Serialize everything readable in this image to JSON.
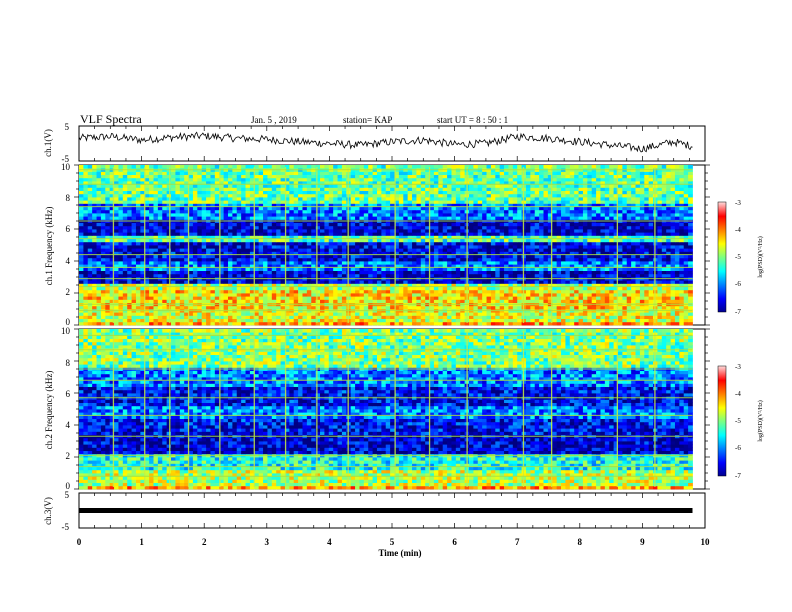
{
  "header": {
    "title": "VLF Spectra",
    "date": "Jan. 5 , 2019",
    "station": "station= KAP",
    "start": "start UT = 8 : 50 : 1"
  },
  "chart_data": [
    {
      "type": "line",
      "ylabel": "ch.1(V)",
      "ylim": [
        -5,
        5
      ],
      "yticks": [
        "5",
        "-5"
      ],
      "xlim": [
        0,
        10
      ],
      "series": [
        {
          "x": [
            0.0,
            0.5,
            1.0,
            1.5,
            2.0,
            2.5,
            3.0,
            3.5,
            4.0,
            4.5,
            5.0,
            5.5,
            6.0,
            6.5,
            7.0,
            7.5,
            8.0,
            8.5,
            9.0,
            9.5,
            9.8
          ],
          "values": [
            1.5,
            2.0,
            1.0,
            1.8,
            2.2,
            1.5,
            1.2,
            0.5,
            0.0,
            -0.5,
            0.5,
            1.0,
            -0.3,
            0.0,
            2.0,
            1.5,
            0.5,
            -0.5,
            -1.5,
            0.5,
            -0.8
          ]
        }
      ]
    },
    {
      "type": "heatmap",
      "ylabel": "ch.1 Frequency (kHz)",
      "ylim": [
        0,
        10
      ],
      "yticks": [
        "0",
        "2",
        "4",
        "6",
        "8",
        "10"
      ],
      "xlim": [
        0,
        10
      ],
      "colorbar": {
        "label": "log(PSD)(V²/Hz)",
        "range": [
          -7,
          -3
        ],
        "ticks": [
          "-3",
          "-4",
          "-5",
          "-6",
          "-7"
        ]
      },
      "bands": [
        {
          "f0": 0.0,
          "f1": 0.3,
          "level": -4.2
        },
        {
          "f0": 0.3,
          "f1": 1.0,
          "level": -4.6
        },
        {
          "f0": 1.0,
          "f1": 2.2,
          "level": -4.4
        },
        {
          "f0": 2.2,
          "f1": 2.6,
          "level": -4.8
        },
        {
          "f0": 2.6,
          "f1": 3.4,
          "level": -6.7
        },
        {
          "f0": 3.4,
          "f1": 4.0,
          "level": -6.0
        },
        {
          "f0": 4.0,
          "f1": 5.2,
          "level": -6.6
        },
        {
          "f0": 5.2,
          "f1": 5.6,
          "level": -5.2
        },
        {
          "f0": 5.6,
          "f1": 6.6,
          "level": -6.7
        },
        {
          "f0": 6.6,
          "f1": 7.6,
          "level": -6.0
        },
        {
          "f0": 7.6,
          "f1": 10.0,
          "level": -5.1
        }
      ],
      "lines_khz": [
        0.9,
        1.3,
        2.4,
        2.9,
        3.6,
        4.4,
        5.4,
        6.5,
        7.4,
        8.8,
        9.7
      ],
      "spikes_min": [
        0.55,
        1.05,
        1.45,
        1.75,
        2.25,
        2.8,
        3.3,
        3.8,
        4.3,
        5.05,
        5.6,
        6.2,
        7.1,
        7.55,
        8.6,
        9.2
      ]
    },
    {
      "type": "heatmap",
      "ylabel": "ch.2 Frequency (kHz)",
      "ylim": [
        0,
        10
      ],
      "yticks": [
        "0",
        "2",
        "4",
        "6",
        "8",
        "10"
      ],
      "xlim": [
        0,
        10
      ],
      "colorbar": {
        "label": "log(PSD)(V²/Hz)",
        "range": [
          -7,
          -3
        ],
        "ticks": [
          "-3",
          "-4",
          "-5",
          "-6",
          "-7"
        ]
      },
      "bands": [
        {
          "f0": 0.0,
          "f1": 0.3,
          "level": -4.2
        },
        {
          "f0": 0.3,
          "f1": 1.2,
          "level": -4.8
        },
        {
          "f0": 1.2,
          "f1": 2.2,
          "level": -5.4
        },
        {
          "f0": 2.2,
          "f1": 3.4,
          "level": -6.7
        },
        {
          "f0": 3.4,
          "f1": 4.4,
          "level": -6.5
        },
        {
          "f0": 4.4,
          "f1": 5.2,
          "level": -6.0
        },
        {
          "f0": 5.2,
          "f1": 6.4,
          "level": -6.5
        },
        {
          "f0": 6.4,
          "f1": 7.6,
          "level": -6.0
        },
        {
          "f0": 7.6,
          "f1": 10.0,
          "level": -5.0
        }
      ],
      "lines_khz": [
        0.8,
        1.4,
        2.1,
        3.3,
        4.6,
        5.7,
        6.8,
        7.5,
        8.7,
        9.6
      ],
      "spikes_min": [
        0.55,
        1.05,
        1.45,
        1.75,
        2.25,
        2.8,
        3.3,
        3.8,
        4.3,
        5.05,
        5.6,
        6.2,
        7.1,
        7.55,
        8.6,
        9.2
      ]
    },
    {
      "type": "line",
      "ylabel": "ch.3(V)",
      "ylim": [
        -5,
        5
      ],
      "yticks": [
        "5",
        "-5"
      ],
      "xlim": [
        0,
        10
      ],
      "xlabel": "Time (min)",
      "xticks": [
        "0",
        "1",
        "2",
        "3",
        "4",
        "5",
        "6",
        "7",
        "8",
        "9",
        "10"
      ],
      "series": [
        {
          "x": [
            0,
            9.8
          ],
          "values": [
            0,
            0
          ]
        }
      ]
    }
  ]
}
